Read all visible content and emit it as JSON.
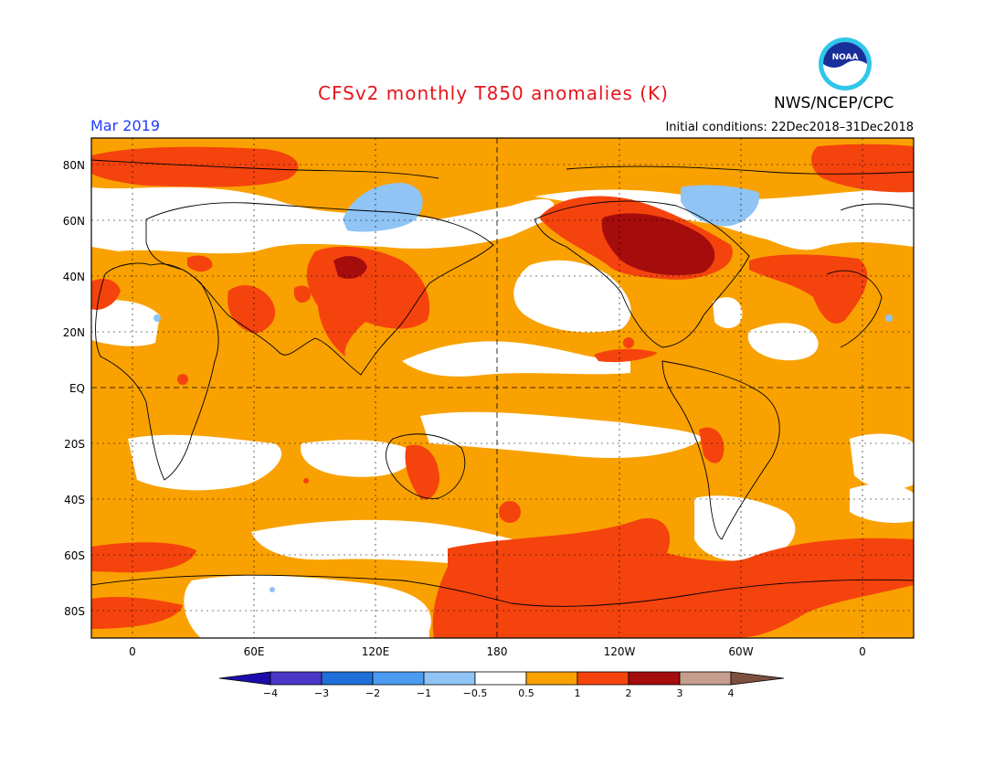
{
  "header": {
    "title": "CFSv2 monthly T850 anomalies (K)",
    "valid_month": "Mar 2019",
    "initial_conditions": "Initial conditions: 22Dec2018–31Dec2018",
    "agency": "NWS/NCEP/CPC",
    "logo_text": "NOAA"
  },
  "map": {
    "lat_labels": [
      "80N",
      "60N",
      "40N",
      "20N",
      "EQ",
      "20S",
      "40S",
      "60S",
      "80S"
    ],
    "lon_labels": [
      "0",
      "60E",
      "120E",
      "180",
      "120W",
      "60W",
      "0"
    ]
  },
  "legend": {
    "tick_labels": [
      "−4",
      "−3",
      "−2",
      "−1",
      "−0.5",
      "0.5",
      "1",
      "2",
      "3",
      "4"
    ],
    "colors": [
      "#1c0dab",
      "#4b37c6",
      "#1f6fd8",
      "#4b9cf0",
      "#8fc4f5",
      "#ffffff",
      "#f9a100",
      "#f5430e",
      "#a50c0c",
      "#c69e8e",
      "#7e4e3e"
    ]
  }
}
